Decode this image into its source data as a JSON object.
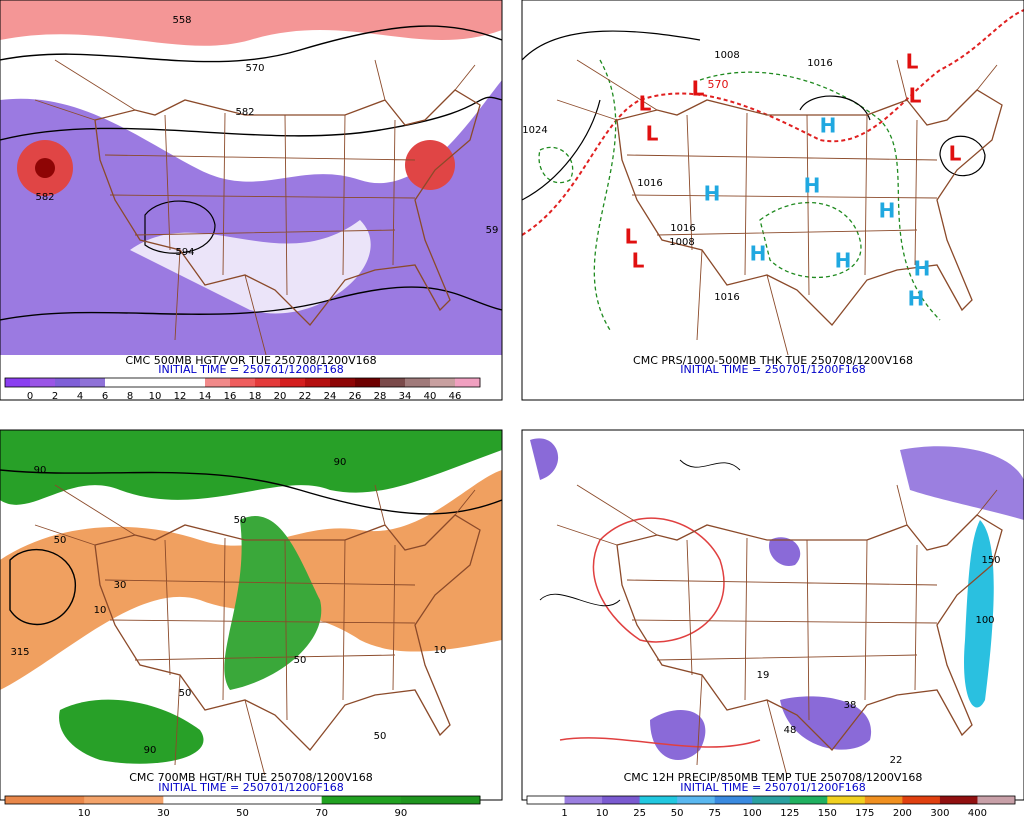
{
  "panels": [
    {
      "caption": "CMC 500MB HGT/VOR TUE 250708/1200V168",
      "initial_time": "INITIAL TIME = 250701/1200F168",
      "map_labels": [
        "558",
        "570",
        "582",
        "582",
        "594",
        "59"
      ],
      "colorbar": {
        "colors": [
          "#8a3ef0",
          "#9a55e6",
          "#7f5fd8",
          "#8f72d8",
          "#ffffff",
          "#ffffff",
          "#ffffff",
          "#ffffff",
          "#f28a8a",
          "#ef5d5d",
          "#e43a3a",
          "#d41e1e",
          "#b50f0f",
          "#8e0505",
          "#6e0000",
          "#7a4a4a",
          "#a07a7a",
          "#c8a0a0",
          "#f0a0c0"
        ],
        "labels": [
          "0",
          "2",
          "4",
          "6",
          "8",
          "10",
          "12",
          "14",
          "16",
          "18",
          "20",
          "22",
          "24",
          "26",
          "28",
          "34",
          "40",
          "46"
        ]
      }
    },
    {
      "caption": "CMC PRS/1000-500MB THK TUE 250708/1200V168",
      "initial_time": "INITIAL TIME = 250701/1200F168",
      "map_labels": [
        "L",
        "L",
        "L",
        "L",
        "L",
        "L",
        "L",
        "L",
        "H",
        "H",
        "H",
        "H",
        "H",
        "H",
        "H",
        "H",
        "1008",
        "1016",
        "1024",
        "1016",
        "1016",
        "1008",
        "1016",
        "570"
      ]
    },
    {
      "caption": "CMC 700MB HGT/RH TUE 250708/1200V168",
      "initial_time": "INITIAL TIME = 250701/1200F168",
      "map_labels": [
        "50",
        "90",
        "10",
        "315",
        "50",
        "30",
        "50",
        "10",
        "90",
        "50",
        "50",
        "90"
      ],
      "colorbar": {
        "colors": [
          "#e8874a",
          "#f3a36a",
          "#ffffff",
          "#ffffff",
          "#21a121",
          "#1f951f"
        ],
        "labels": [
          "10",
          "30",
          "50",
          "70",
          "90"
        ]
      }
    },
    {
      "caption": "CMC 12H PRECIP/850MB TEMP TUE 250708/1200V168",
      "initial_time": "INITIAL TIME = 250701/1200F168",
      "map_labels": [
        "22",
        "19",
        "48",
        "38",
        "150",
        "100"
      ],
      "colorbar": {
        "colors": [
          "#ffffff",
          "#9b7fe0",
          "#7a5ad0",
          "#22c8e0",
          "#5ab8f0",
          "#3a8ae0",
          "#2aa0a0",
          "#20b060",
          "#f0d020",
          "#f09020",
          "#e04010",
          "#901010",
          "#c8a0a8"
        ],
        "labels": [
          "1",
          "10",
          "25",
          "50",
          "75",
          "100",
          "125",
          "150",
          "175",
          "200",
          "300",
          "400"
        ]
      }
    }
  ]
}
